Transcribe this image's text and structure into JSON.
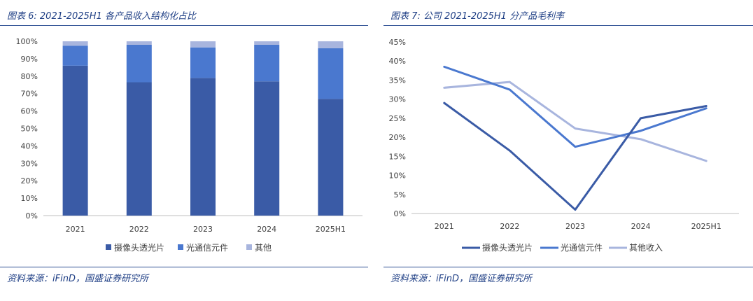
{
  "colors": {
    "title": "#1f3f85",
    "rule": "#2c4e93",
    "axis_text": "#404040",
    "series_dark": "#3a5ba6",
    "series_mid": "#4a78cf",
    "series_light": "#a8b5de",
    "axis_line": "#bfbfbf"
  },
  "left": {
    "title": "图表 6:  2021-2025H1 各产品收入结构化占比",
    "source": "资料来源：iFinD，国盛证券研究所"
  },
  "right": {
    "title": "图表 7:  公司 2021-2025H1 分产品毛利率",
    "source": "资料来源：iFinD，国盛证券研究所"
  },
  "chart_data": [
    {
      "type": "bar",
      "stacked": true,
      "categories": [
        "2021",
        "2022",
        "2023",
        "2024",
        "2025H1"
      ],
      "series": [
        {
          "name": "摄像头透光片",
          "values": [
            86,
            76.5,
            79,
            77,
            67
          ],
          "color": "#3a5ba6"
        },
        {
          "name": "光通信元件",
          "values": [
            11.5,
            21.5,
            17.5,
            21,
            29
          ],
          "color": "#4a78cf"
        },
        {
          "name": "其他",
          "values": [
            2.5,
            2,
            3.5,
            2,
            4
          ],
          "color": "#a8b5de"
        }
      ],
      "yticks": [
        "0%",
        "10%",
        "20%",
        "30%",
        "40%",
        "50%",
        "60%",
        "70%",
        "80%",
        "90%",
        "100%"
      ],
      "ylim": [
        0,
        100
      ],
      "grid": false,
      "legend_position": "bottom"
    },
    {
      "type": "line",
      "categories": [
        "2021",
        "2022",
        "2023",
        "2024",
        "2025H1"
      ],
      "series": [
        {
          "name": "摄像头透光片",
          "values": [
            29,
            16.5,
            1,
            25,
            28.2
          ],
          "color": "#3a5ba6"
        },
        {
          "name": "光通信元件",
          "values": [
            38.5,
            32.5,
            17.5,
            21.7,
            27.6
          ],
          "color": "#4a78cf"
        },
        {
          "name": "其他收入",
          "values": [
            33,
            34.5,
            22.3,
            19.5,
            13.8
          ],
          "color": "#a8b5de"
        }
      ],
      "yticks": [
        "0%",
        "5%",
        "10%",
        "15%",
        "20%",
        "25%",
        "30%",
        "35%",
        "40%",
        "45%"
      ],
      "ylim": [
        0,
        45
      ],
      "grid": false,
      "legend_position": "bottom"
    }
  ]
}
